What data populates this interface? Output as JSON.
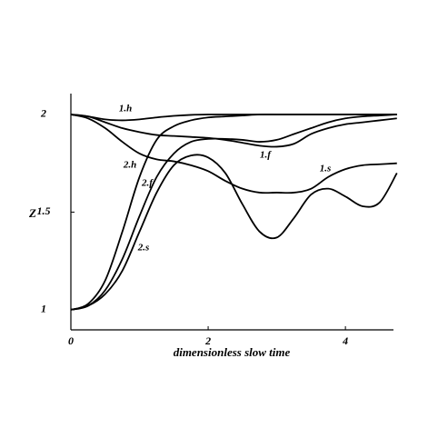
{
  "chart_data": {
    "type": "line",
    "x_label": "dimensionless slow time",
    "y_label": "Z",
    "x": [
      0,
      0.25,
      0.5,
      0.75,
      1,
      1.25,
      1.5,
      1.75,
      2,
      2.25,
      2.5,
      2.75,
      3,
      3.25,
      3.5,
      3.75,
      4,
      4.25,
      4.5,
      4.75
    ],
    "series": [
      {
        "name": "1.h",
        "color": "#000000",
        "values": [
          2,
          1.99,
          1.975,
          1.97,
          1.975,
          1.985,
          1.993,
          1.998,
          2,
          2,
          2,
          2,
          2,
          2,
          2,
          2,
          2,
          2,
          2,
          2
        ]
      },
      {
        "name": "1.f",
        "color": "#000000",
        "values": [
          2,
          1.99,
          1.96,
          1.93,
          1.91,
          1.895,
          1.89,
          1.885,
          1.88,
          1.87,
          1.855,
          1.84,
          1.835,
          1.85,
          1.9,
          1.93,
          1.95,
          1.96,
          1.97,
          1.98
        ]
      },
      {
        "name": "1.s",
        "color": "#000000",
        "values": [
          2,
          1.98,
          1.93,
          1.86,
          1.8,
          1.77,
          1.76,
          1.74,
          1.71,
          1.66,
          1.62,
          1.6,
          1.6,
          1.6,
          1.62,
          1.68,
          1.72,
          1.74,
          1.745,
          1.75
        ]
      },
      {
        "name": "2.h",
        "color": "#000000",
        "values": [
          1,
          1.03,
          1.15,
          1.4,
          1.68,
          1.87,
          1.94,
          1.97,
          1.985,
          1.99,
          1.995,
          2,
          2,
          2,
          2,
          2,
          2,
          2,
          2,
          2
        ]
      },
      {
        "name": "2.f",
        "color": "#000000",
        "values": [
          1,
          1.02,
          1.1,
          1.26,
          1.48,
          1.68,
          1.8,
          1.86,
          1.875,
          1.875,
          1.87,
          1.86,
          1.87,
          1.9,
          1.93,
          1.96,
          1.98,
          1.99,
          1.995,
          2
        ]
      },
      {
        "name": "2.s",
        "color": "#000000",
        "values": [
          1,
          1.02,
          1.08,
          1.2,
          1.4,
          1.6,
          1.74,
          1.79,
          1.78,
          1.7,
          1.54,
          1.4,
          1.37,
          1.47,
          1.59,
          1.62,
          1.58,
          1.53,
          1.55,
          1.7
        ]
      }
    ],
    "xlim": [
      0,
      4.7
    ],
    "ylim": [
      0.897,
      2.107
    ],
    "xticks": [
      0,
      2,
      4
    ],
    "yticks": [
      1,
      1.5,
      2
    ],
    "grid": false
  }
}
